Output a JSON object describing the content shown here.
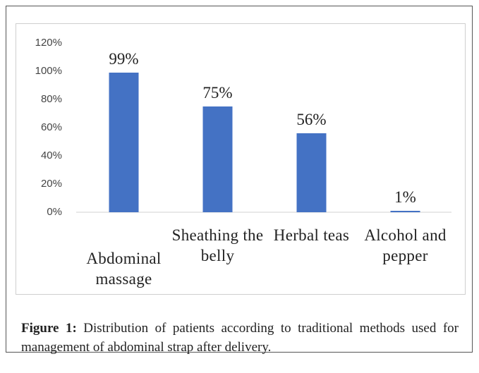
{
  "chart_data": {
    "type": "bar",
    "categories": [
      "Abdominal massage",
      "Sheathing the belly",
      "Herbal teas",
      "Alcohol and pepper"
    ],
    "values": [
      99,
      75,
      56,
      1
    ],
    "value_labels": [
      "99%",
      "75%",
      "56%",
      "1%"
    ],
    "color": "#4472c4",
    "ylim": [
      0,
      120
    ],
    "yticks": [
      {
        "value": 0,
        "label": "0%"
      },
      {
        "value": 20,
        "label": "20%"
      },
      {
        "value": 40,
        "label": "40%"
      },
      {
        "value": 60,
        "label": "60%"
      },
      {
        "value": 80,
        "label": "80%"
      },
      {
        "value": 100,
        "label": "100%"
      },
      {
        "value": 120,
        "label": "120%"
      }
    ],
    "grid": false
  },
  "caption": {
    "label": "Figure 1:",
    "text": "Distribution of patients according to traditional methods used for management of abdominal strap after delivery."
  }
}
